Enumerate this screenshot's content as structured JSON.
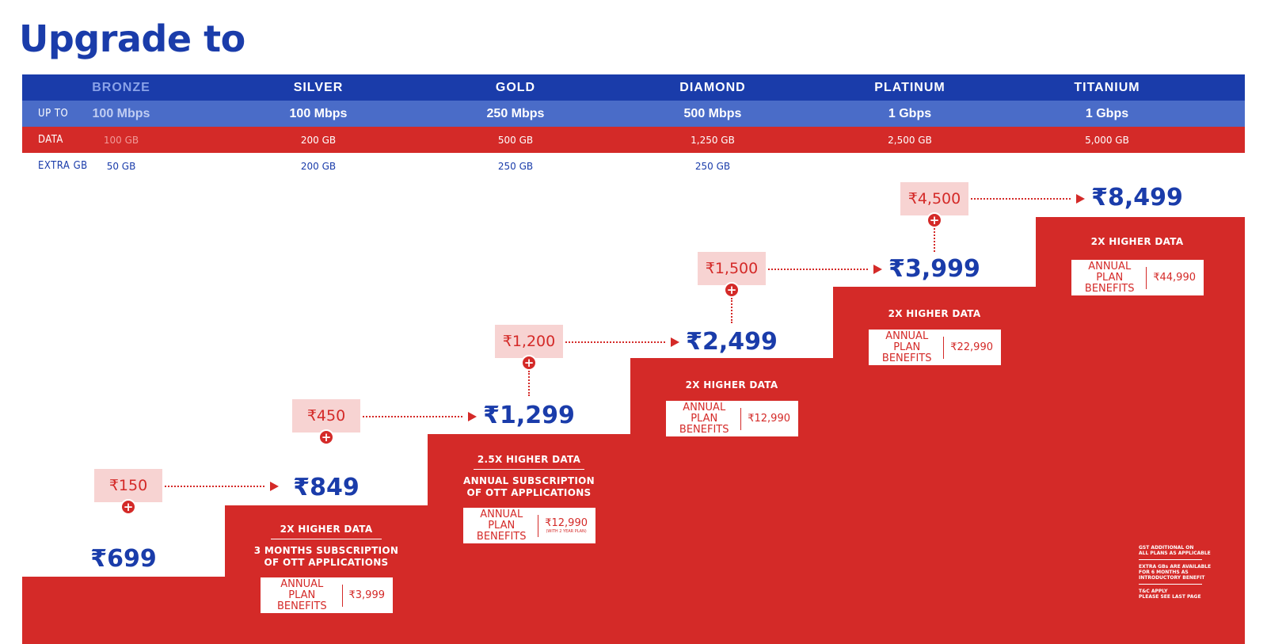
{
  "title": "Upgrade to",
  "labels": {
    "up_to": "UP TO",
    "data": "DATA",
    "extra_gb": "EXTRA GB"
  },
  "plans": [
    {
      "name": "BRONZE",
      "speed": "100 Mbps",
      "data": "100 GB",
      "extra": "50 GB",
      "price": "₹699",
      "annual_value": ""
    },
    {
      "name": "SILVER",
      "speed": "100 Mbps",
      "data": "200 GB",
      "extra": "200 GB",
      "price": "₹849",
      "addon": "₹150",
      "feature1": "2X HIGHER DATA",
      "feature2": "3 MONTHS SUBSCRIPTION",
      "feature3": "OF OTT APPLICATIONS",
      "annual_value": "₹3,999"
    },
    {
      "name": "GOLD",
      "speed": "250 Mbps",
      "data": "500 GB",
      "extra": "250 GB",
      "price": "₹1,299",
      "addon": "₹450",
      "feature1": "2.5X HIGHER DATA",
      "feature2": "ANNUAL SUBSCRIPTION",
      "feature3": "OF OTT APPLICATIONS",
      "annual_value": "₹12,990",
      "annual_note": "(WITH 2 YEAR PLAN)"
    },
    {
      "name": "DIAMOND",
      "speed": "500 Mbps",
      "data": "1,250 GB",
      "extra": "250 GB",
      "price": "₹2,499",
      "addon": "₹1,200",
      "feature1": "2X HIGHER DATA",
      "annual_value": "₹12,990"
    },
    {
      "name": "PLATINUM",
      "speed": "1 Gbps",
      "data": "2,500 GB",
      "extra": "",
      "price": "₹3,999",
      "addon": "₹1,500",
      "feature1": "2X HIGHER DATA",
      "annual_value": "₹22,990"
    },
    {
      "name": "TITANIUM",
      "speed": "1 Gbps",
      "data": "5,000 GB",
      "extra": "",
      "price": "₹8,499",
      "addon": "₹4,500",
      "feature1": "2X HIGHER DATA",
      "annual_value": "₹44,990"
    }
  ],
  "annual_label_1": "ANNUAL PLAN",
  "annual_label_2": "BENEFITS",
  "plus_symbol": "+",
  "notes": {
    "n1a": "GST ADDITIONAL ON",
    "n1b": "ALL PLANS AS APPLICABLE",
    "n2a": "EXTRA GBs ARE AVAILABLE",
    "n2b": "FOR 6 MONTHS AS",
    "n2c": "INTRODUCTORY BENEFIT",
    "n3a": "T&C APPLY",
    "n3b": "PLEASE SEE LAST PAGE"
  },
  "colors": {
    "blue": "#1a3caa",
    "light_blue": "#4a6cc8",
    "red": "#d42a28",
    "pink": "#f7d3d2"
  }
}
